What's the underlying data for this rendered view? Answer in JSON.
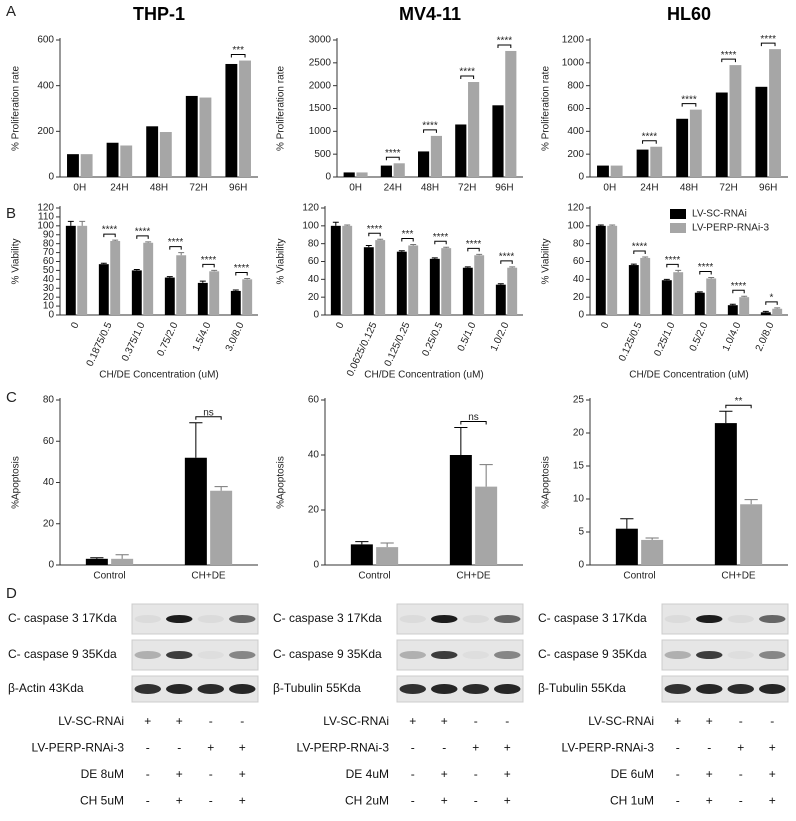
{
  "panel_labels": [
    "A",
    "B",
    "C",
    "D"
  ],
  "chart_data": [
    {
      "type": "bar",
      "title": "THP-1",
      "y_label": "% Proliferation rate",
      "categories": [
        "0H",
        "24H",
        "48H",
        "72H",
        "96H"
      ],
      "series": [
        {
          "color": "#000000",
          "values": [
            100,
            150,
            222,
            355,
            495
          ]
        },
        {
          "color": "#a6a6a6",
          "values": [
            100,
            138,
            197,
            348,
            510
          ]
        }
      ],
      "significance": [
        null,
        null,
        null,
        null,
        "***"
      ],
      "ylim": [
        0,
        600
      ],
      "yticks": [
        0,
        200,
        400,
        600
      ]
    },
    {
      "type": "bar",
      "title": "MV4-11",
      "y_label": "% Proliferation rate",
      "categories": [
        "0H",
        "24H",
        "48H",
        "72H",
        "96H"
      ],
      "series": [
        {
          "color": "#000000",
          "values": [
            100,
            250,
            560,
            1150,
            1570
          ]
        },
        {
          "color": "#a6a6a6",
          "values": [
            100,
            300,
            900,
            2080,
            2760
          ]
        }
      ],
      "significance": [
        null,
        "****",
        "****",
        "****",
        "****"
      ],
      "ylim": [
        0,
        3000
      ],
      "yticks": [
        0,
        500,
        1000,
        1500,
        2000,
        2500,
        3000
      ]
    },
    {
      "type": "bar",
      "title": "HL60",
      "y_label": "% Proliferation rate",
      "categories": [
        "0H",
        "24H",
        "48H",
        "72H",
        "96H"
      ],
      "series": [
        {
          "color": "#000000",
          "values": [
            100,
            240,
            510,
            740,
            790
          ]
        },
        {
          "color": "#a6a6a6",
          "values": [
            100,
            265,
            590,
            980,
            1120
          ]
        }
      ],
      "significance": [
        null,
        "****",
        "****",
        "****",
        "****"
      ],
      "ylim": [
        0,
        1200
      ],
      "yticks": [
        0,
        200,
        400,
        600,
        800,
        1000,
        1200
      ]
    },
    {
      "type": "bar",
      "y_label": "% Viability",
      "x_label": "CH/DE Concentration (uM)",
      "categories": [
        "0",
        "0.1875/0.5",
        "0.375/1.0",
        "0.75/2.0",
        "1.5/4.0",
        "3.0/8.0"
      ],
      "series": [
        {
          "color": "#000000",
          "values": [
            100,
            57,
            50,
            42,
            36,
            27
          ],
          "errors": [
            5,
            1,
            1,
            1,
            2,
            1
          ]
        },
        {
          "color": "#a6a6a6",
          "values": [
            100,
            83,
            81,
            67,
            49,
            40
          ],
          "errors": [
            5,
            1,
            1,
            3,
            1,
            1
          ]
        }
      ],
      "significance": [
        null,
        "****",
        "****",
        "****",
        "****",
        "****"
      ],
      "ylim": [
        0,
        120
      ],
      "yticks": [
        0,
        10,
        20,
        30,
        40,
        50,
        60,
        70,
        80,
        90,
        100,
        110,
        120
      ]
    },
    {
      "type": "bar",
      "y_label": "% Viability",
      "x_label": "CH/DE Concentration (uM)",
      "categories": [
        "0",
        "0.0625/0.125",
        "0.125/0.25",
        "0.25/0.5",
        "0.5/1.0",
        "1.0/2.0"
      ],
      "series": [
        {
          "color": "#000000",
          "values": [
            100,
            76,
            71,
            63,
            53,
            34
          ],
          "errors": [
            4,
            2,
            1,
            1,
            1,
            1
          ]
        },
        {
          "color": "#a6a6a6",
          "values": [
            100,
            84,
            78,
            75,
            67,
            53
          ],
          "errors": [
            1,
            1,
            1,
            1,
            1,
            1
          ]
        }
      ],
      "significance": [
        null,
        "****",
        "***",
        "****",
        "****",
        "****"
      ],
      "ylim": [
        0,
        120
      ],
      "yticks": [
        0,
        20,
        40,
        60,
        80,
        100,
        120
      ]
    },
    {
      "type": "bar",
      "y_label": "% Viability",
      "x_label": "CH/DE Concentration (uM)",
      "legend": "upper right",
      "categories": [
        "0",
        "0.125/0.5",
        "0.25/1.0",
        "0.5/2.0",
        "1.0/4.0",
        "2.0/8.0"
      ],
      "series": [
        {
          "name": "LV-SC-RNAi",
          "color": "#000000",
          "values": [
            100,
            56,
            39,
            25,
            11,
            3
          ],
          "errors": [
            1,
            1,
            1,
            1,
            1,
            1
          ]
        },
        {
          "name": "LV-PERP-RNAi-3",
          "color": "#a6a6a6",
          "values": [
            100,
            64,
            48,
            41,
            20,
            7
          ],
          "errors": [
            1,
            1,
            2,
            1,
            1,
            1
          ]
        }
      ],
      "significance": [
        null,
        "****",
        "****",
        "****",
        "****",
        "*"
      ],
      "ylim": [
        0,
        120
      ],
      "yticks": [
        0,
        20,
        40,
        60,
        80,
        100,
        120
      ]
    },
    {
      "type": "bar",
      "y_label": "%Apoptosis",
      "categories": [
        "Control",
        "CH+DE"
      ],
      "series": [
        {
          "color": "#000000",
          "values": [
            3,
            52
          ],
          "errors": [
            0.5,
            17
          ]
        },
        {
          "color": "#a6a6a6",
          "values": [
            3,
            36
          ],
          "errors": [
            2,
            2
          ]
        }
      ],
      "significance": [
        null,
        "ns"
      ],
      "ylim": [
        0,
        80
      ],
      "yticks": [
        0,
        20,
        40,
        60,
        80
      ]
    },
    {
      "type": "bar",
      "y_label": "%Apoptosis",
      "categories": [
        "Control",
        "CH+DE"
      ],
      "series": [
        {
          "color": "#000000",
          "values": [
            7.5,
            40
          ],
          "errors": [
            1,
            10
          ]
        },
        {
          "color": "#a6a6a6",
          "values": [
            6.5,
            28.5
          ],
          "errors": [
            1.5,
            8
          ]
        }
      ],
      "significance": [
        null,
        "ns"
      ],
      "ylim": [
        0,
        60
      ],
      "yticks": [
        0,
        20,
        40,
        60
      ]
    },
    {
      "type": "bar",
      "y_label": "%Apoptosis",
      "categories": [
        "Control",
        "CH+DE"
      ],
      "series": [
        {
          "color": "#000000",
          "values": [
            5.5,
            21.5
          ],
          "errors": [
            1.5,
            1.8
          ]
        },
        {
          "color": "#a6a6a6",
          "values": [
            3.8,
            9.2
          ],
          "errors": [
            0.3,
            0.7
          ]
        }
      ],
      "significance": [
        null,
        "**"
      ],
      "ylim": [
        0,
        25
      ],
      "yticks": [
        0,
        5,
        10,
        15,
        20,
        25
      ]
    }
  ],
  "blots": [
    {
      "bands": [
        "C- caspase 3 17Kda",
        "C- caspase 9 35Kda",
        "β-Actin 43Kda"
      ],
      "treatments": [
        {
          "label": "LV-SC-RNAi",
          "signs": [
            "+",
            "+",
            "-",
            "-"
          ]
        },
        {
          "label": "LV-PERP-RNAi-3",
          "signs": [
            "-",
            "-",
            "+",
            "+"
          ]
        },
        {
          "label": "DE 8uM",
          "signs": [
            "-",
            "+",
            "-",
            "+"
          ]
        },
        {
          "label": "CH 5uM",
          "signs": [
            "-",
            "+",
            "-",
            "+"
          ]
        }
      ]
    },
    {
      "bands": [
        "C- caspase 3 17Kda",
        "C- caspase 9 35Kda",
        "β-Tubulin 55Kda"
      ],
      "treatments": [
        {
          "label": "LV-SC-RNAi",
          "signs": [
            "+",
            "+",
            "-",
            "-"
          ]
        },
        {
          "label": "LV-PERP-RNAi-3",
          "signs": [
            "-",
            "-",
            "+",
            "+"
          ]
        },
        {
          "label": "DE 4uM",
          "signs": [
            "-",
            "+",
            "-",
            "+"
          ]
        },
        {
          "label": "CH 2uM",
          "signs": [
            "-",
            "+",
            "-",
            "+"
          ]
        }
      ]
    },
    {
      "bands": [
        "C- caspase 3 17Kda",
        "C- caspase 9 35Kda",
        "β-Tubulin 55Kda"
      ],
      "treatments": [
        {
          "label": "LV-SC-RNAi",
          "signs": [
            "+",
            "+",
            "-",
            "-"
          ]
        },
        {
          "label": "LV-PERP-RNAi-3",
          "signs": [
            "-",
            "-",
            "+",
            "+"
          ]
        },
        {
          "label": "DE 6uM",
          "signs": [
            "-",
            "+",
            "-",
            "+"
          ]
        },
        {
          "label": "CH 1uM",
          "signs": [
            "-",
            "+",
            "-",
            "+"
          ]
        }
      ]
    }
  ]
}
